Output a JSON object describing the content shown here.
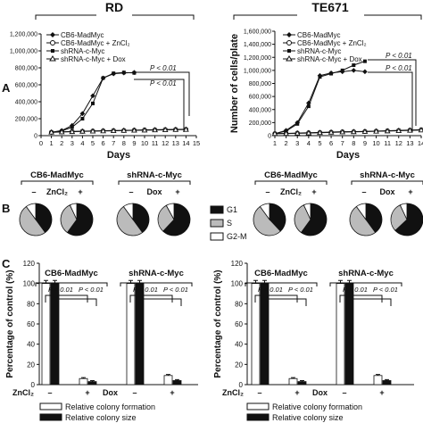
{
  "panel_labels": {
    "a": "A",
    "b": "B",
    "c": "C"
  },
  "headers": {
    "left": "RD",
    "right": "TE671"
  },
  "legends": {
    "growth": [
      "CB6-MadMyc",
      "CB6-MadMyc + ZnCl₂",
      "shRNA-c-Myc",
      "shRNA-c-Myc + Dox"
    ],
    "cycle": [
      "G1",
      "S",
      "G2-M"
    ],
    "colony": [
      "Relative colony formation",
      "Relative colony size"
    ]
  },
  "labels": {
    "days": "Days",
    "cells_plate": "Number of cells/plate",
    "pct_control": "Percentage of control (%)",
    "p": "P < 0.01",
    "cb6": "CB6-MadMyc",
    "sh": "shRNA-c-Myc",
    "zncl": "ZnCl₂",
    "dox": "Dox",
    "minus": "–",
    "plus": "+"
  },
  "colors": {
    "black": "#111111",
    "gray": "#bbbbbb",
    "white": "#ffffff"
  },
  "chart_data": [
    {
      "type": "line",
      "panel": "A-RD",
      "xlabel": "Days",
      "ylabel": "",
      "xlim": [
        0,
        15
      ],
      "ylim": [
        0,
        1200000
      ],
      "x_ticks": [
        0,
        1,
        2,
        3,
        4,
        5,
        6,
        7,
        8,
        9,
        10,
        11,
        12,
        13,
        14,
        15
      ],
      "y_ticks": [
        0,
        200000,
        400000,
        600000,
        800000,
        1000000,
        1200000
      ],
      "y_tick_labels": [
        "0",
        "200,000",
        "400,000",
        "600,000",
        "800,000",
        "1,000,000",
        "1,200,000"
      ],
      "series": [
        {
          "name": "CB6-MadMyc",
          "marker": "filled-diamond",
          "x": [
            1,
            2,
            3,
            4,
            5,
            6,
            7,
            8,
            9
          ],
          "y": [
            40000,
            60000,
            120000,
            260000,
            470000,
            680000,
            730000,
            740000,
            745000
          ]
        },
        {
          "name": "CB6-MadMyc + ZnCl₂",
          "marker": "open-circle",
          "x": [
            1,
            2,
            3,
            4,
            5,
            6,
            7,
            8,
            9,
            10,
            11,
            12,
            13,
            14
          ],
          "y": [
            40000,
            45000,
            50000,
            52000,
            55000,
            58000,
            60000,
            62000,
            65000,
            68000,
            70000,
            72000,
            74000,
            75000
          ]
        },
        {
          "name": "shRNA-c-Myc",
          "marker": "filled-square",
          "x": [
            1,
            2,
            3,
            4,
            5,
            6,
            7,
            8,
            9
          ],
          "y": [
            40000,
            55000,
            100000,
            200000,
            380000,
            680000,
            735000,
            745000,
            740000
          ]
        },
        {
          "name": "shRNA-c-Myc + Dox",
          "marker": "open-triangle",
          "x": [
            1,
            2,
            3,
            4,
            5,
            6,
            7,
            8,
            9,
            10,
            11,
            12,
            13,
            14
          ],
          "y": [
            40000,
            43000,
            46000,
            50000,
            52000,
            55000,
            57000,
            60000,
            62000,
            64000,
            66000,
            68000,
            70000,
            72000
          ]
        }
      ],
      "annotations": [
        "P < 0.01",
        "P < 0.01"
      ]
    },
    {
      "type": "line",
      "panel": "A-TE671",
      "xlabel": "Days",
      "ylabel": "Number of cells/plate",
      "xlim": [
        1,
        14
      ],
      "ylim": [
        0,
        1600000
      ],
      "x_ticks": [
        1,
        2,
        3,
        4,
        5,
        6,
        7,
        8,
        9,
        10,
        11,
        12,
        13,
        14
      ],
      "y_ticks": [
        0,
        200000,
        400000,
        600000,
        800000,
        1000000,
        1200000,
        1400000,
        1600000
      ],
      "y_tick_labels": [
        "0",
        "200,000",
        "400,000",
        "600,000",
        "800,000",
        "1,000,000",
        "1,200,000",
        "1,400,000",
        "1,600,000"
      ],
      "series": [
        {
          "name": "CB6-MadMyc",
          "marker": "filled-diamond",
          "x": [
            1,
            2,
            3,
            4,
            5,
            6,
            7,
            8,
            9
          ],
          "y": [
            30000,
            80000,
            200000,
            500000,
            920000,
            960000,
            980000,
            1000000,
            980000
          ]
        },
        {
          "name": "CB6-MadMyc + ZnCl₂",
          "marker": "open-circle",
          "x": [
            1,
            2,
            3,
            4,
            5,
            6,
            7,
            8,
            9,
            10,
            11,
            12,
            13,
            14
          ],
          "y": [
            30000,
            35000,
            40000,
            45000,
            50000,
            55000,
            60000,
            62000,
            65000,
            70000,
            75000,
            80000,
            85000,
            90000
          ]
        },
        {
          "name": "shRNA-c-Myc",
          "marker": "filled-square",
          "x": [
            1,
            2,
            3,
            4,
            5,
            6,
            7,
            8,
            9
          ],
          "y": [
            30000,
            70000,
            180000,
            450000,
            900000,
            950000,
            1000000,
            1080000,
            1140000
          ]
        },
        {
          "name": "shRNA-c-Myc + Dox",
          "marker": "open-triangle",
          "x": [
            1,
            2,
            3,
            4,
            5,
            6,
            7,
            8,
            9,
            10,
            11,
            12,
            13,
            14
          ],
          "y": [
            30000,
            32000,
            36000,
            40000,
            45000,
            50000,
            55000,
            58000,
            62000,
            66000,
            70000,
            75000,
            80000,
            85000
          ]
        }
      ],
      "annotations": [
        "P < 0.01",
        "P < 0.01"
      ]
    },
    {
      "type": "pie",
      "panel": "B-RD",
      "categories": [
        "G1",
        "S",
        "G2-M"
      ],
      "pies": [
        {
          "group": "CB6-MadMyc",
          "treatment": "–",
          "values": [
            40,
            50,
            10
          ]
        },
        {
          "group": "CB6-MadMyc",
          "treatment": "+",
          "values": [
            60,
            33,
            7
          ]
        },
        {
          "group": "shRNA-c-Myc",
          "treatment": "–",
          "values": [
            40,
            50,
            10
          ]
        },
        {
          "group": "shRNA-c-Myc",
          "treatment": "+",
          "values": [
            62,
            30,
            8
          ]
        }
      ]
    },
    {
      "type": "pie",
      "panel": "B-TE671",
      "categories": [
        "G1",
        "S",
        "G2-M"
      ],
      "pies": [
        {
          "group": "CB6-MadMyc",
          "treatment": "–",
          "values": [
            38,
            52,
            10
          ]
        },
        {
          "group": "CB6-MadMyc",
          "treatment": "+",
          "values": [
            60,
            33,
            7
          ]
        },
        {
          "group": "shRNA-c-Myc",
          "treatment": "–",
          "values": [
            40,
            50,
            10
          ]
        },
        {
          "group": "shRNA-c-Myc",
          "treatment": "+",
          "values": [
            63,
            30,
            7
          ]
        }
      ]
    },
    {
      "type": "bar",
      "panel": "C-RD",
      "ylabel": "Percentage of control (%)",
      "ylim": [
        0,
        120
      ],
      "y_ticks": [
        0,
        20,
        40,
        60,
        80,
        100,
        120
      ],
      "categories": [
        "CB6-MadMyc –",
        "CB6-MadMyc +",
        "shRNA-c-Myc –",
        "shRNA-c-Myc +"
      ],
      "series": [
        {
          "name": "Relative colony formation",
          "values": [
            100,
            6,
            100,
            9
          ],
          "errors": [
            3,
            1,
            3,
            1
          ]
        },
        {
          "name": "Relative colony size",
          "values": [
            100,
            3,
            100,
            4
          ],
          "errors": [
            3,
            1,
            3,
            1
          ]
        }
      ],
      "annotations": [
        "P < 0.01",
        "P < 0.01",
        "P < 0.01",
        "P < 0.01"
      ]
    },
    {
      "type": "bar",
      "panel": "C-TE671",
      "ylabel": "Percentage of control (%)",
      "ylim": [
        0,
        120
      ],
      "y_ticks": [
        0,
        20,
        40,
        60,
        80,
        100,
        120
      ],
      "categories": [
        "CB6-MadMyc –",
        "CB6-MadMyc +",
        "shRNA-c-Myc –",
        "shRNA-c-Myc +"
      ],
      "series": [
        {
          "name": "Relative colony formation",
          "values": [
            100,
            6,
            100,
            9
          ],
          "errors": [
            3,
            1,
            3,
            1
          ]
        },
        {
          "name": "Relative colony size",
          "values": [
            100,
            3,
            100,
            4
          ],
          "errors": [
            3,
            1,
            3,
            1
          ]
        }
      ],
      "annotations": [
        "P < 0.01",
        "P < 0.01",
        "P < 0.01",
        "P < 0.01"
      ]
    }
  ]
}
